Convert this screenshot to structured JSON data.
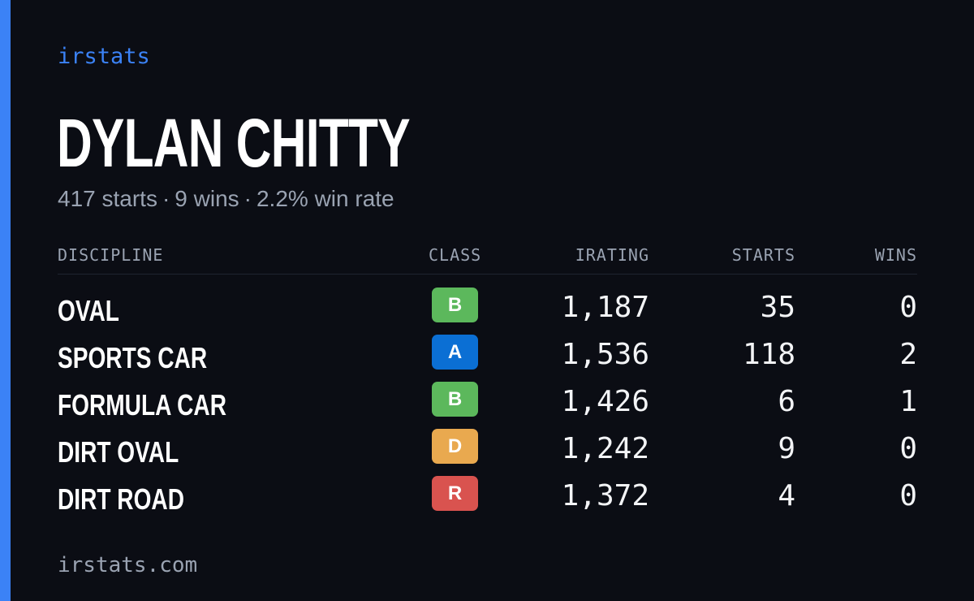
{
  "brand": "irstats",
  "driver": {
    "name": "DYLAN CHITTY",
    "starts_text": "417 starts",
    "wins_text": "9 wins",
    "win_rate_text": "2.2% win rate",
    "separator": "·"
  },
  "table": {
    "headers": {
      "discipline": "DISCIPLINE",
      "class": "CLASS",
      "irating": "IRATING",
      "starts": "STARTS",
      "wins": "WINS"
    },
    "rows": [
      {
        "discipline": "OVAL",
        "class": "B",
        "class_color": "#5cb85c",
        "irating": "1,187",
        "starts": "35",
        "wins": "0"
      },
      {
        "discipline": "SPORTS CAR",
        "class": "A",
        "class_color": "#0b6fd4",
        "irating": "1,536",
        "starts": "118",
        "wins": "2"
      },
      {
        "discipline": "FORMULA CAR",
        "class": "B",
        "class_color": "#5cb85c",
        "irating": "1,426",
        "starts": "6",
        "wins": "1"
      },
      {
        "discipline": "DIRT OVAL",
        "class": "D",
        "class_color": "#e9a94f",
        "irating": "1,242",
        "starts": "9",
        "wins": "0"
      },
      {
        "discipline": "DIRT ROAD",
        "class": "R",
        "class_color": "#d9534f",
        "irating": "1,372",
        "starts": "4",
        "wins": "0"
      }
    ]
  },
  "footer": {
    "url": "irstats.com"
  },
  "colors": {
    "background": "#0b0d14",
    "accent": "#3b82f6",
    "muted_text": "#9aa3b2"
  }
}
